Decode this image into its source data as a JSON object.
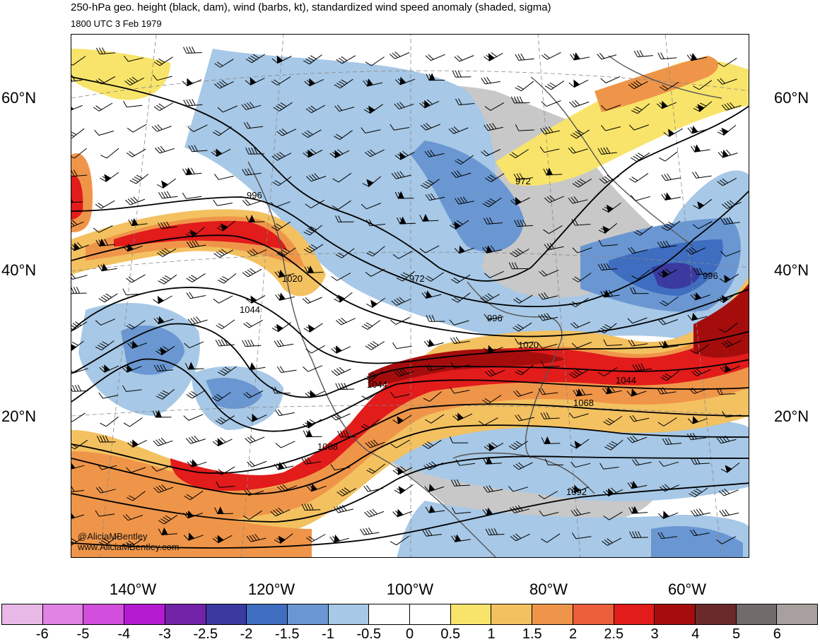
{
  "title": "250-hPa geo. height (black, dam), wind (barbs, kt), standardized wind speed anomaly (shaded, sigma)",
  "subtitle": "1800 UTC 3 Feb 1979",
  "credits": [
    "@AliciaMBentley",
    "www.AliciaMBentley.com"
  ],
  "latitude_labels": [
    "60°N",
    "40°N",
    "20°N"
  ],
  "longitude_labels": [
    "140°W",
    "120°W",
    "100°W",
    "80°W",
    "60°W"
  ],
  "contour_labels": [
    "996",
    "1020",
    "1044",
    "972",
    "996",
    "1020",
    "1044",
    "1068",
    "972",
    "996",
    "1044",
    "1068",
    "1092"
  ],
  "colorbar": {
    "ticks": [
      "-6",
      "-5",
      "-4",
      "-3",
      "-2.5",
      "-2",
      "-1.5",
      "-1",
      "-0.5",
      "0",
      "0.5",
      "1",
      "1.5",
      "2",
      "2.5",
      "3",
      "4",
      "5",
      "6"
    ],
    "colors": [
      "#E8B9E6",
      "#E183E4",
      "#D24EDC",
      "#B41AD0",
      "#7223A8",
      "#3A3AA0",
      "#3F6DC0",
      "#6A97D2",
      "#A7C8E6",
      "#FFFFFF",
      "#FFFFFF",
      "#F8E46A",
      "#F3C160",
      "#EF9549",
      "#EB5E3A",
      "#E21B1B",
      "#A50D0D",
      "#6A2A2A",
      "#716B6B",
      "#A7A09F"
    ]
  }
}
